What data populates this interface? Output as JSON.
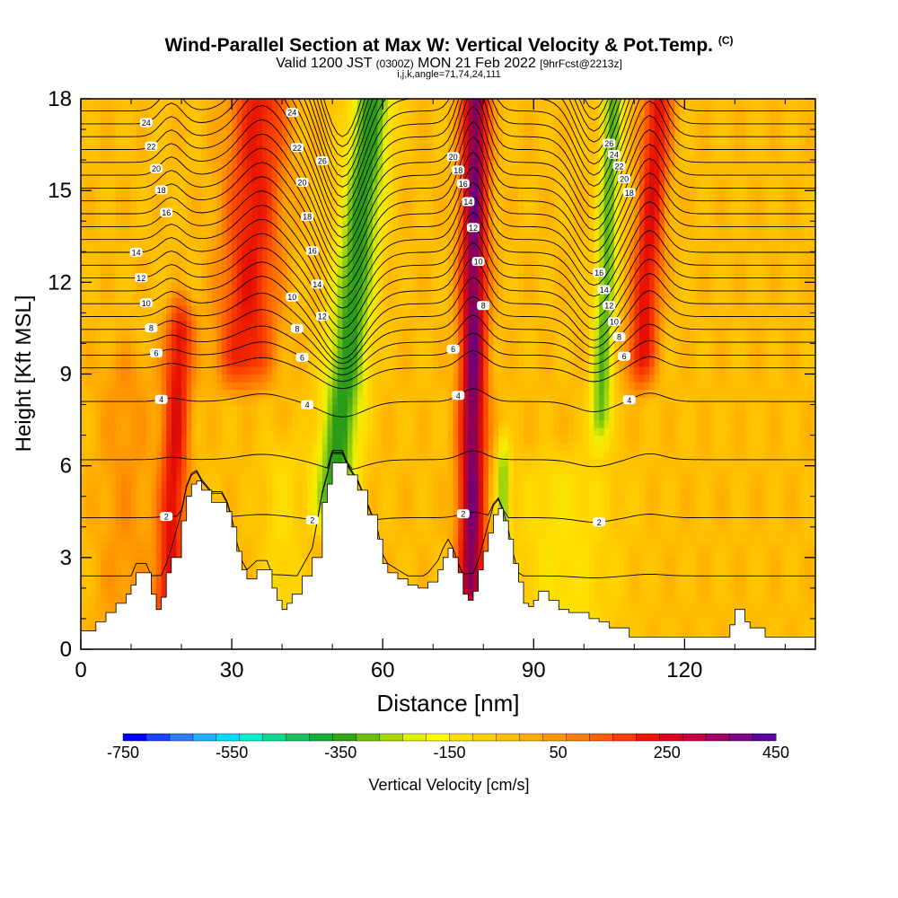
{
  "title": "Wind-Parallel Section at Max W: Vertical Velocity & Pot.Temp.",
  "title_mark": "(C)",
  "subtitle_a": "Valid 1200 JST",
  "subtitle_b": "(0300Z)",
  "subtitle_c": "MON 21 Feb 2022",
  "subtitle_d": "[9hrFcst@2213z]",
  "subtitle2": "i,j,k,angle=71,74,24,111",
  "chart_data": {
    "type": "heatmap",
    "xlabel": "Distance [nm]",
    "ylabel": "Height [Kft MSL]",
    "xlim": [
      0,
      146
    ],
    "ylim": [
      0,
      18
    ],
    "x_ticks": [
      0,
      30,
      60,
      90,
      120
    ],
    "y_ticks": [
      0,
      3,
      6,
      9,
      12,
      15,
      18
    ],
    "colorbar": {
      "label": "Vertical Velocity [cm/s]",
      "tick_labels": [
        "-750",
        "-550",
        "-350",
        "-150",
        "50",
        "250",
        "450"
      ],
      "tick_values": [
        -750,
        -550,
        -350,
        -150,
        50,
        250,
        450
      ],
      "min": -750,
      "max": 450,
      "step": 50,
      "colors": [
        "#0000ff",
        "#1844ff",
        "#2c7cff",
        "#20b0ff",
        "#00dcff",
        "#00f0d0",
        "#10d890",
        "#18c060",
        "#14b034",
        "#30a810",
        "#6cc000",
        "#a8d800",
        "#e0f000",
        "#ffff00",
        "#ffe000",
        "#ffd000",
        "#ffc000",
        "#ffae00",
        "#ff9800",
        "#ff7e00",
        "#ff6000",
        "#ff3c00",
        "#f01400",
        "#d80020",
        "#c00040",
        "#a00064",
        "#800088",
        "#5c00a0"
      ]
    },
    "colormap_anchors": [
      {
        "v": -350,
        "color": "#2a9c18"
      },
      {
        "v": -250,
        "color": "#8ccc10"
      },
      {
        "v": -150,
        "color": "#f0f000"
      },
      {
        "v": -75,
        "color": "#ffdc00"
      },
      {
        "v": 0,
        "color": "#ffbe00"
      },
      {
        "v": 50,
        "color": "#ff9c00"
      },
      {
        "v": 150,
        "color": "#ff5000"
      },
      {
        "v": 250,
        "color": "#e81000"
      },
      {
        "v": 350,
        "color": "#b00030"
      },
      {
        "v": 450,
        "color": "#5a0090"
      }
    ],
    "vertical_velocity_field": {
      "background": 0,
      "features": [
        {
          "x": 18.5,
          "y0": 1.0,
          "y1": 10.5,
          "width": 2.6,
          "peak": 260,
          "slope": 0.25
        },
        {
          "x": 34.0,
          "y0": 9.0,
          "y1": 18.0,
          "width": 5.5,
          "peak": 240,
          "slope": 0.35
        },
        {
          "x": 54.0,
          "y0": 4.5,
          "y1": 18.0,
          "width": 3.8,
          "peak": -370,
          "slope": 0.6
        },
        {
          "x": 78.0,
          "y0": 1.5,
          "y1": 18.0,
          "width": 2.6,
          "peak": 420,
          "slope": 0.05
        },
        {
          "x": 84.0,
          "y0": 1.0,
          "y1": 6.0,
          "width": 1.2,
          "peak": -250,
          "slope": 0.0
        },
        {
          "x": 104.5,
          "y0": 7.0,
          "y1": 18.0,
          "width": 2.0,
          "peak": -300,
          "slope": 0.25
        },
        {
          "x": 113.0,
          "y0": 9.0,
          "y1": 18.0,
          "width": 2.8,
          "peak": 260,
          "slope": 0.4
        },
        {
          "x": 40.0,
          "y0": 0.5,
          "y1": 6.0,
          "width": 4.0,
          "peak": -70,
          "slope": 0.0
        },
        {
          "x": 96.0,
          "y0": 0.5,
          "y1": 5.5,
          "width": 10.0,
          "peak": -90,
          "slope": 0.0
        },
        {
          "x": 9.0,
          "y0": 0.5,
          "y1": 9.0,
          "width": 6.0,
          "peak": 60,
          "slope": 0.0
        }
      ]
    },
    "pot_temp_contours": {
      "interval": 1,
      "labeled_levels": [
        2,
        4,
        6,
        8,
        10,
        12,
        14,
        16,
        18,
        20,
        22,
        24,
        26
      ]
    },
    "terrain_profile": [
      [
        0,
        0.6
      ],
      [
        2,
        0.6
      ],
      [
        3,
        0.9
      ],
      [
        5,
        1.2
      ],
      [
        7,
        1.5
      ],
      [
        9,
        1.8
      ],
      [
        10,
        2.1
      ],
      [
        11,
        2.5
      ],
      [
        13,
        2.5
      ],
      [
        14,
        1.8
      ],
      [
        15,
        1.3
      ],
      [
        16,
        1.7
      ],
      [
        17,
        2.5
      ],
      [
        18,
        3.0
      ],
      [
        20,
        4.2
      ],
      [
        21,
        5.0
      ],
      [
        22,
        5.4
      ],
      [
        23,
        5.5
      ],
      [
        24,
        5.2
      ],
      [
        26,
        4.8
      ],
      [
        28,
        4.8
      ],
      [
        29,
        4.5
      ],
      [
        30,
        4.0
      ],
      [
        31,
        3.2
      ],
      [
        32,
        2.6
      ],
      [
        33,
        2.3
      ],
      [
        35,
        2.6
      ],
      [
        37,
        2.6
      ],
      [
        38,
        2.0
      ],
      [
        39,
        1.6
      ],
      [
        40,
        1.3
      ],
      [
        41,
        1.5
      ],
      [
        42,
        1.8
      ],
      [
        44,
        2.4
      ],
      [
        46,
        3.0
      ],
      [
        48,
        4.8
      ],
      [
        49,
        5.4
      ],
      [
        50,
        6.1
      ],
      [
        52,
        6.1
      ],
      [
        53,
        5.7
      ],
      [
        55,
        5.2
      ],
      [
        57,
        4.4
      ],
      [
        59,
        3.6
      ],
      [
        60,
        2.8
      ],
      [
        61,
        2.5
      ],
      [
        63,
        2.3
      ],
      [
        65,
        2.1
      ],
      [
        67,
        2.0
      ],
      [
        69,
        2.2
      ],
      [
        71,
        2.6
      ],
      [
        72,
        3.0
      ],
      [
        73,
        3.3
      ],
      [
        74,
        3.0
      ],
      [
        75,
        2.5
      ],
      [
        76,
        1.8
      ],
      [
        77,
        1.6
      ],
      [
        78,
        1.9
      ],
      [
        79,
        2.6
      ],
      [
        80,
        3.2
      ],
      [
        81,
        3.8
      ],
      [
        82,
        4.4
      ],
      [
        83,
        4.6
      ],
      [
        84,
        4.2
      ],
      [
        85,
        3.6
      ],
      [
        86,
        2.8
      ],
      [
        87,
        2.2
      ],
      [
        88,
        1.5
      ],
      [
        89,
        1.4
      ],
      [
        90,
        1.6
      ],
      [
        91,
        1.9
      ],
      [
        93,
        1.6
      ],
      [
        95,
        1.3
      ],
      [
        97,
        1.2
      ],
      [
        99,
        1.2
      ],
      [
        101,
        1.0
      ],
      [
        103,
        0.9
      ],
      [
        105,
        0.7
      ],
      [
        107,
        0.7
      ],
      [
        109,
        0.4
      ],
      [
        113,
        0.4
      ],
      [
        117,
        0.4
      ],
      [
        122,
        0.4
      ],
      [
        128,
        0.4
      ],
      [
        129,
        0.8
      ],
      [
        130,
        1.3
      ],
      [
        131,
        1.3
      ],
      [
        132,
        0.9
      ],
      [
        133,
        0.7
      ],
      [
        135,
        0.7
      ],
      [
        136,
        0.4
      ],
      [
        146,
        0.4
      ]
    ]
  }
}
